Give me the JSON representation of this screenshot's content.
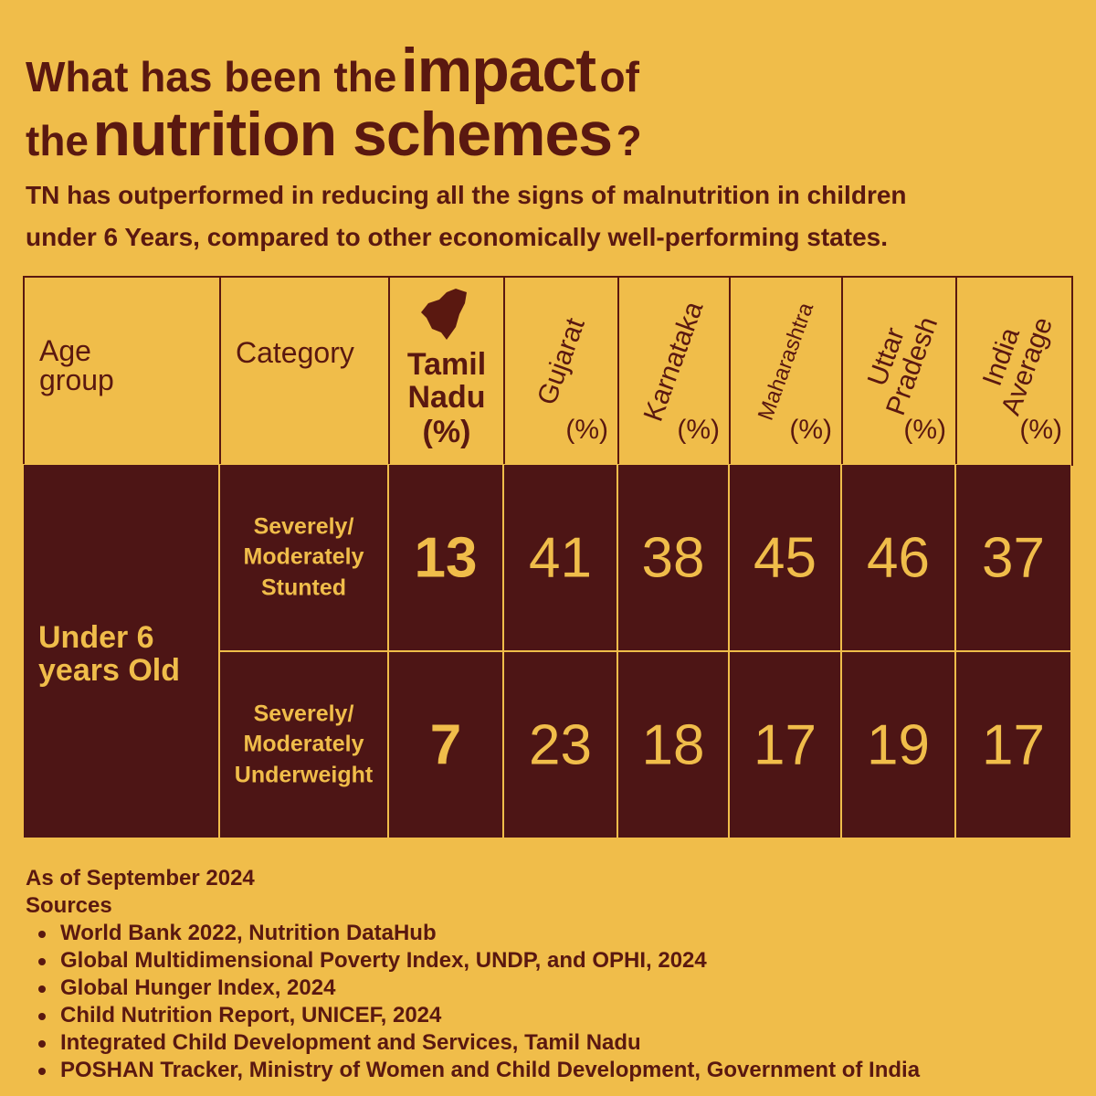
{
  "header": {
    "title_line1": [
      "What has been the",
      "impact",
      "of"
    ],
    "title_line2": [
      "the",
      "nutrition schemes",
      "?"
    ],
    "subtitle_lines": [
      "TN has outperformed in reducing all the signs of malnutrition in children",
      "under 6 Years, compared to other economically well-performing states."
    ]
  },
  "table": {
    "columns": [
      {
        "name": "Age group"
      },
      {
        "name": "Category"
      },
      {
        "name": "Tamil Nadu",
        "unit": "(%)"
      },
      {
        "name": "Gujarat",
        "unit": "(%)"
      },
      {
        "name": "Karnataka",
        "unit": "(%)"
      },
      {
        "name": "Maharashtra",
        "unit": "(%)"
      },
      {
        "name": "Uttar Pradesh",
        "unit": "(%)"
      },
      {
        "name": "India Average",
        "unit": "(%)"
      }
    ],
    "age_group": "Under 6 years Old",
    "rows": [
      {
        "category": [
          "Severely/",
          "Moderately",
          "Stunted"
        ],
        "values": [
          13,
          41,
          38,
          45,
          46,
          37
        ]
      },
      {
        "category": [
          "Severely/",
          "Moderately",
          "Underweight"
        ],
        "values": [
          7,
          23,
          18,
          17,
          19,
          17
        ]
      }
    ]
  },
  "footer": {
    "as_of": "As of September 2024",
    "sources_title": "Sources",
    "sources": [
      "World Bank 2022, Nutrition DataHub",
      "Global Multidimensional Poverty Index, UNDP, and OPHI, 2024",
      "Global Hunger Index, 2024",
      "Child Nutrition Report, UNICEF, 2024",
      "Integrated Child Development and Services, Tamil Nadu",
      "POSHAN Tracker, Ministry of Women and Child Development, Government of India"
    ]
  }
}
